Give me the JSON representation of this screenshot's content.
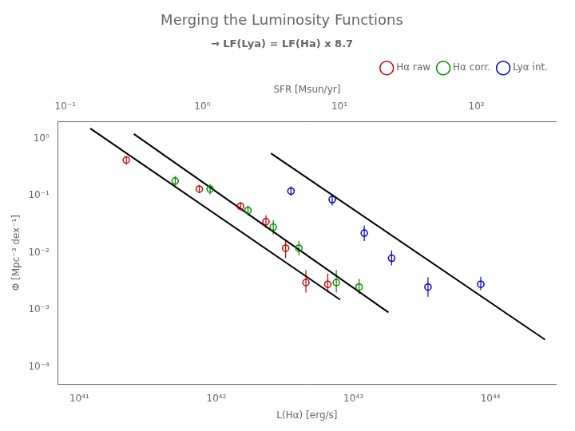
{
  "chart_data": {
    "type": "scatter",
    "title": "Merging the Luminosity Functions",
    "subtitle": "→ LF(Lya) = LF(Ha) x 8.7",
    "x_label": "L(Hα) [erg/s]",
    "y_label": "Φ [Mpc⁻³ dex⁻¹]",
    "x2_label": "SFR [Msun/yr]",
    "log": true,
    "grid": false,
    "legend": "upper right",
    "xlim": [
      7e+40,
      3e+44
    ],
    "xticks": [
      {
        "value": 1e+41,
        "label": "10⁴¹"
      },
      {
        "value": 1e+42,
        "label": "10⁴²"
      },
      {
        "value": 1e+43,
        "label": "10⁴³"
      },
      {
        "value": 1e+44,
        "label": "10⁴⁴"
      }
    ],
    "ylim": [
      5e-05,
      2.0
    ],
    "yticks": [
      {
        "value": 0.0001,
        "label": "10⁻⁴"
      },
      {
        "value": 0.001,
        "label": "10⁻³"
      },
      {
        "value": 0.01,
        "label": "10⁻²"
      },
      {
        "value": 0.1,
        "label": "10⁻¹"
      },
      {
        "value": 1,
        "label": "10⁰"
      }
    ],
    "x2lim": [
      0.08860759493670886,
      379.7468354430379
    ],
    "x2ticks": [
      {
        "value": 0.1,
        "label": "10⁻¹"
      },
      {
        "value": 1,
        "label": "10⁰"
      },
      {
        "value": 10,
        "label": "10¹"
      },
      {
        "value": 100,
        "label": "10²"
      }
    ],
    "series": [
      {
        "type": "line",
        "color": "#000000",
        "x": [
          1.2e+41,
          8e+42
        ],
        "values": [
          1.5,
          0.0015
        ]
      },
      {
        "type": "line",
        "color": "#000000",
        "x": [
          2.5e+41,
          1.8e+43
        ],
        "values": [
          1.2,
          0.0009
        ]
      },
      {
        "type": "line",
        "color": "#000000",
        "x": [
          2.5e+42,
          2.5e+44
        ],
        "values": [
          0.55,
          0.0003
        ]
      },
      {
        "name": "Hα raw",
        "type": "scatter",
        "color": "#cc0000",
        "marker": "open_circle",
        "x": [
          2.2e+41,
          7.5e+41,
          1.5e+42,
          2.3e+42,
          3.2e+42,
          4.5e+42,
          6.5e+42
        ],
        "values": [
          0.42,
          0.13,
          0.065,
          0.035,
          0.012,
          0.003,
          0.0028
        ],
        "yerr_lo": [
          0.07,
          0.02,
          0.01,
          0.008,
          0.004,
          0.001,
          0.0008
        ],
        "yerr_hi": [
          0.07,
          0.025,
          0.012,
          0.01,
          0.005,
          0.002,
          0.0015
        ]
      },
      {
        "name": "Hα corr.",
        "type": "scatter",
        "color": "#008800",
        "marker": "open_circle",
        "x": [
          5e+41,
          9e+41,
          1.7e+42,
          2.6e+42,
          4e+42,
          7.5e+42,
          1.1e+43
        ],
        "values": [
          0.18,
          0.13,
          0.055,
          0.028,
          0.012,
          0.003,
          0.0025
        ],
        "yerr_lo": [
          0.03,
          0.025,
          0.01,
          0.007,
          0.003,
          0.001,
          0.0006
        ],
        "yerr_hi": [
          0.04,
          0.03,
          0.012,
          0.009,
          0.004,
          0.002,
          0.001
        ]
      },
      {
        "name": "Lyα int.",
        "type": "scatter",
        "color": "#0000cc",
        "marker": "open_circle",
        "x": [
          3.5e+42,
          7e+42,
          1.2e+43,
          1.9e+43,
          3.5e+43,
          8.5e+43
        ],
        "values": [
          0.12,
          0.085,
          0.022,
          0.008,
          0.0025,
          0.0028
        ],
        "yerr_lo": [
          0.02,
          0.018,
          0.006,
          0.002,
          0.0008,
          0.0006
        ],
        "yerr_hi": [
          0.025,
          0.022,
          0.008,
          0.003,
          0.0012,
          0.001
        ]
      }
    ]
  }
}
